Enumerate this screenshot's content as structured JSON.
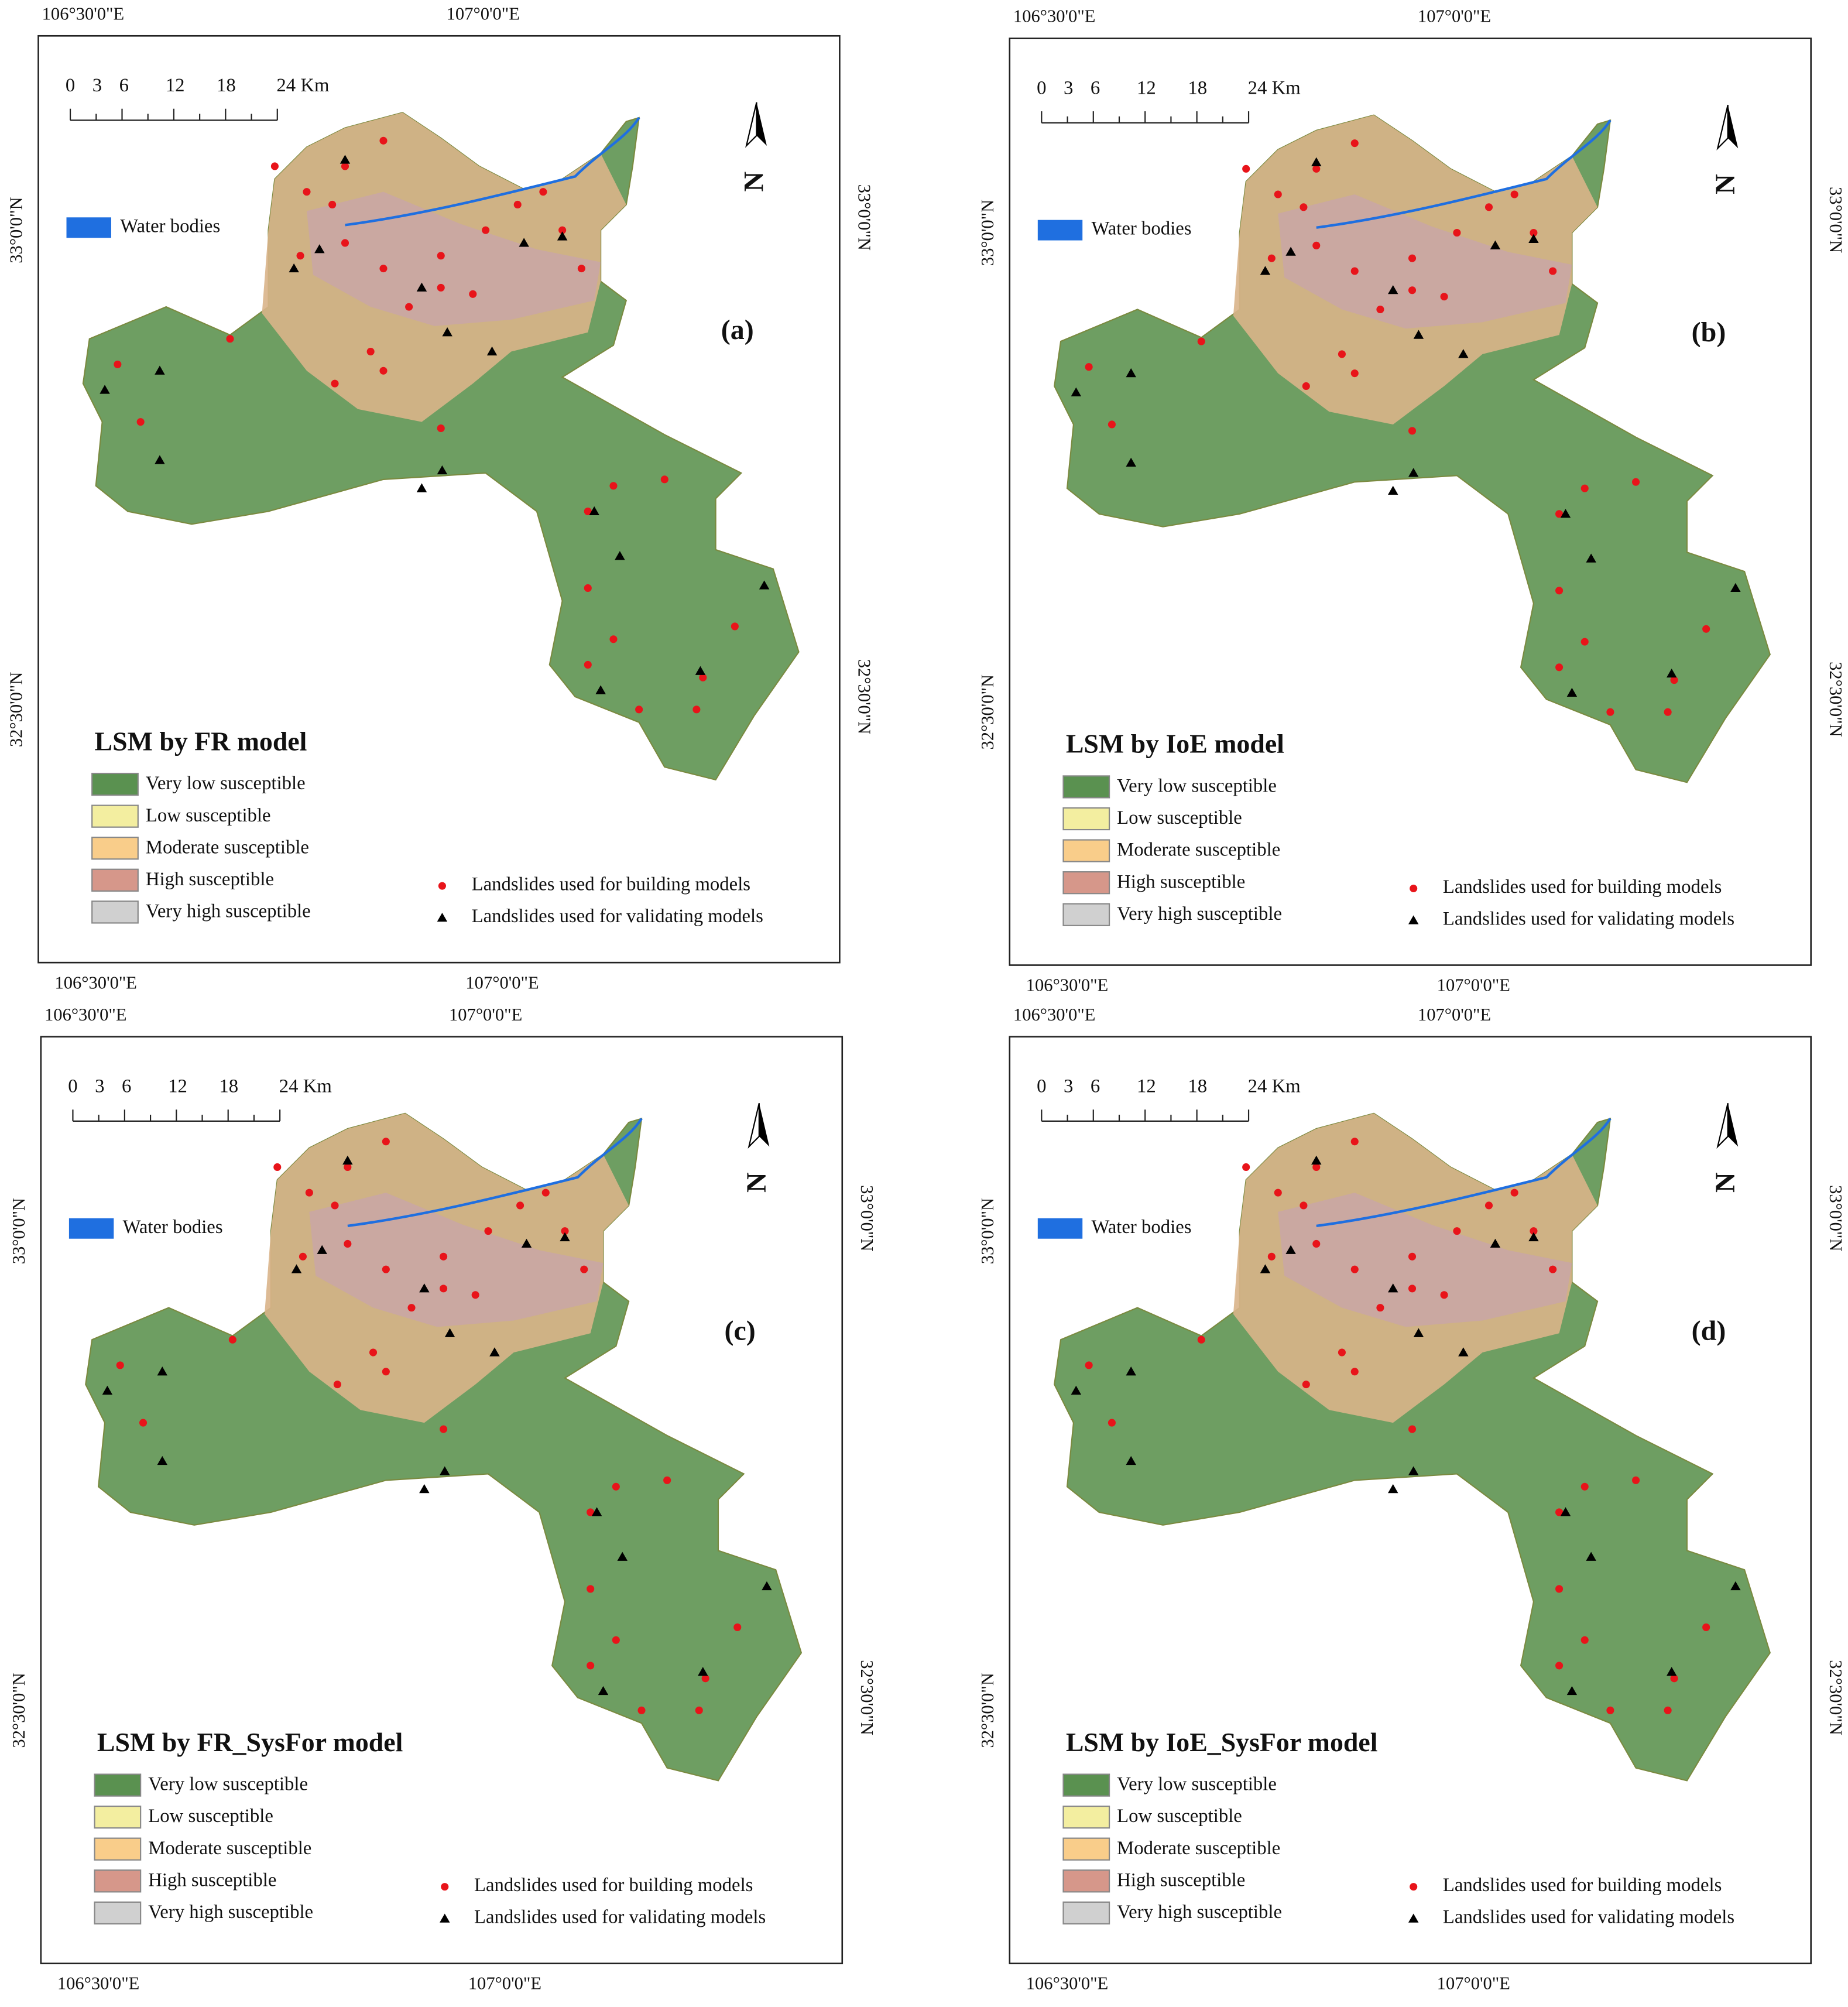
{
  "panels": [
    {
      "label": "(a)",
      "title": "LSM by FR model",
      "top_lon_labels": [
        "106°30'0\"E",
        "107°0'0\"E"
      ],
      "bottom_lon_labels": [
        "106°30'0\"E",
        "107°0'0\"E"
      ],
      "left_lat_labels": [
        "33°0'0\"N",
        "32°30'0\"N"
      ],
      "right_lat_labels": [
        "33°0'0\"N",
        "32°30'0\"N"
      ],
      "scale_labels": [
        "0",
        "3",
        "6",
        "12",
        "18",
        "24 Km"
      ],
      "north": "N",
      "water": "Water bodies",
      "legend": [
        "Very low susceptible",
        "Low susceptible",
        "Moderate susceptible",
        "High susceptible",
        "Very high susceptible"
      ],
      "points_legend": [
        "Landslides used for building models",
        "Landslides used for validating models"
      ]
    },
    {
      "label": "(b)",
      "title": "LSM by IoE model",
      "top_lon_labels": [
        "106°30'0\"E",
        "107°0'0\"E"
      ],
      "bottom_lon_labels": [
        "106°30'0\"E",
        "107°0'0\"E"
      ],
      "left_lat_labels": [
        "33°0'0\"N",
        "32°30'0\"N"
      ],
      "right_lat_labels": [
        "33°0'0\"N",
        "32°30'0\"N"
      ],
      "scale_labels": [
        "0",
        "3",
        "6",
        "12",
        "18",
        "24 Km"
      ],
      "north": "N",
      "water": "Water bodies",
      "legend": [
        "Very low susceptible",
        "Low susceptible",
        "Moderate susceptible",
        "High susceptible",
        "Very high susceptible"
      ],
      "points_legend": [
        "Landslides used for building models",
        "Landslides used for validating models"
      ]
    },
    {
      "label": "(c)",
      "title": "LSM by FR_SysFor model",
      "top_lon_labels": [
        "106°30'0\"E",
        "107°0'0\"E"
      ],
      "bottom_lon_labels": [
        "106°30'0\"E",
        "107°0'0\"E"
      ],
      "left_lat_labels": [
        "33°0'0\"N",
        "32°30'0\"N"
      ],
      "right_lat_labels": [
        "33°0'0\"N",
        "32°30'0\"N"
      ],
      "scale_labels": [
        "0",
        "3",
        "6",
        "12",
        "18",
        "24 Km"
      ],
      "north": "N",
      "water": "Water bodies",
      "legend": [
        "Very low susceptible",
        "Low susceptible",
        "Moderate susceptible",
        "High susceptible",
        "Very high susceptible"
      ],
      "points_legend": [
        "Landslides used for building models",
        "Landslides used for validating models"
      ]
    },
    {
      "label": "(d)",
      "title": "LSM by IoE_SysFor model",
      "top_lon_labels": [
        "106°30'0\"E",
        "107°0'0\"E"
      ],
      "bottom_lon_labels": [
        "106°30'0\"E",
        "107°0'0\"E"
      ],
      "left_lat_labels": [
        "33°0'0\"N",
        "32°30'0\"N"
      ],
      "right_lat_labels": [
        "33°0'0\"N",
        "32°30'0\"N"
      ],
      "scale_labels": [
        "0",
        "3",
        "6",
        "12",
        "18",
        "24 Km"
      ],
      "north": "N",
      "water": "Water bodies",
      "legend": [
        "Very low susceptible",
        "Low susceptible",
        "Moderate susceptible",
        "High susceptible",
        "Very high susceptible"
      ],
      "points_legend": [
        "Landslides used for building models",
        "Landslides used for validating models"
      ]
    }
  ]
}
